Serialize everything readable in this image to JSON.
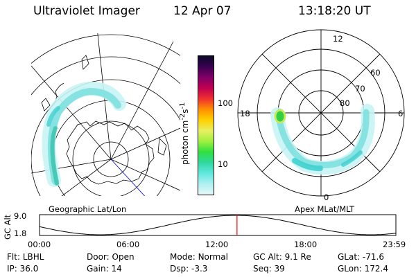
{
  "header": {
    "title": "Ultraviolet Imager",
    "date": "12 Apr 07",
    "time": "13:18:20 UT"
  },
  "left_map": {
    "caption": "Geographic Lat/Lon"
  },
  "right_map": {
    "caption": "Apex MLat/MLT",
    "mlt_labels": {
      "top": "12",
      "left": "18",
      "right": "6",
      "bottom": "0"
    },
    "lat_labels": [
      "60",
      "70",
      "80"
    ]
  },
  "colorbar": {
    "unit": "photon cm",
    "unit_sup1": "-2",
    "unit_mid": "s",
    "unit_sup2": "-1",
    "ticks": [
      "100",
      "10"
    ],
    "colors": [
      "#0a0a2a",
      "#3a0050",
      "#800068",
      "#c00050",
      "#f03030",
      "#ff9000",
      "#ffd000",
      "#e8f060",
      "#a0f040",
      "#30e040",
      "#30d8a0",
      "#60e8e0",
      "#b0f0f0",
      "#e8f8f8"
    ]
  },
  "gc_alt_plot": {
    "ylabel": "GC Alt",
    "yticks": [
      "9.0",
      "1.8"
    ],
    "xticks": [
      "00:00",
      "06:00",
      "12:00",
      "18:00",
      "23:59"
    ],
    "marker_hour": 13.3,
    "marker_color": "#ff0000"
  },
  "info_rows": [
    [
      {
        "label": "Flt:",
        "value": "LBHL"
      },
      {
        "label": "Door:",
        "value": "Open"
      },
      {
        "label": "Mode:",
        "value": "Normal"
      },
      {
        "label": "GC Alt:",
        "value": "9.1 Re"
      },
      {
        "label": "GLat:",
        "value": "-71.6"
      }
    ],
    [
      {
        "label": "IP:",
        "value": "36.0"
      },
      {
        "label": "Gain:",
        "value": "14"
      },
      {
        "label": "Dsp:",
        "value": "-3.3"
      },
      {
        "label": "Seq:",
        "value": "39"
      },
      {
        "label": "GLon:",
        "value": "172.4"
      }
    ]
  ]
}
